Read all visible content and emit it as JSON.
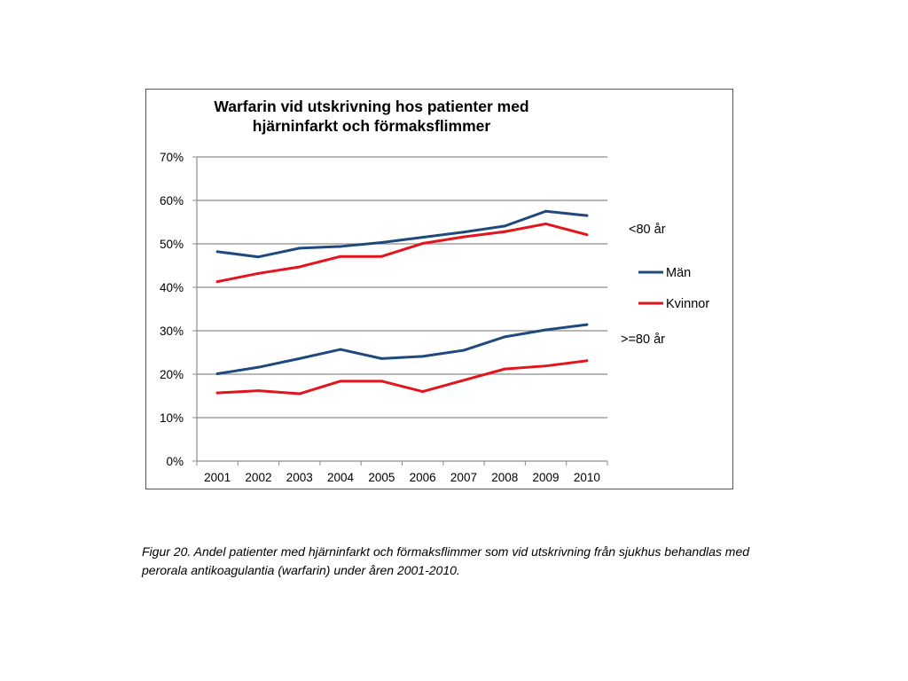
{
  "caption": {
    "label": "Figur 20.",
    "text": " Andel patienter med hjärninfarkt och förmaksflimmer som vid utskrivning från sjukhus behandlas med perorala antikoagulantia (warfarin) under åren 2001-2010."
  },
  "chart_data": {
    "type": "line",
    "title": "Warfarin vid utskrivning hos patienter med hjärninfarkt och förmaksflimmer",
    "title_lines": [
      "Warfarin vid utskrivning hos patienter med",
      "hjärninfarkt och förmaksflimmer"
    ],
    "xlabel": "",
    "ylabel": "",
    "categories": [
      "2001",
      "2002",
      "2003",
      "2004",
      "2005",
      "2006",
      "2007",
      "2008",
      "2009",
      "2010"
    ],
    "ylim": [
      0,
      0.7
    ],
    "yticks": [
      0,
      0.1,
      0.2,
      0.3,
      0.4,
      0.5,
      0.6,
      0.7
    ],
    "ytick_labels": [
      "0%",
      "10%",
      "20%",
      "30%",
      "40%",
      "50%",
      "60%",
      "70%"
    ],
    "grid": true,
    "legend_position": "right",
    "group_labels": {
      "under80": "<80 år",
      "over80": ">=80 år"
    },
    "legend": [
      {
        "name": "Män",
        "color": "#1f497d"
      },
      {
        "name": "Kvinnor",
        "color": "#e3141b"
      }
    ],
    "series": [
      {
        "group": "under80",
        "legend_index": 0,
        "color": "#1f497d",
        "values": [
          0.482,
          0.47,
          0.49,
          0.494,
          0.503,
          0.515,
          0.527,
          0.541,
          0.575,
          0.565
        ]
      },
      {
        "group": "under80",
        "legend_index": 1,
        "color": "#e3141b",
        "values": [
          0.413,
          0.432,
          0.447,
          0.471,
          0.471,
          0.501,
          0.516,
          0.528,
          0.546,
          0.521
        ]
      },
      {
        "group": "over80",
        "legend_index": 0,
        "color": "#1f497d",
        "values": [
          0.201,
          0.216,
          0.236,
          0.257,
          0.236,
          0.241,
          0.255,
          0.286,
          0.302,
          0.314
        ]
      },
      {
        "group": "over80",
        "legend_index": 1,
        "color": "#e3141b",
        "values": [
          0.157,
          0.162,
          0.155,
          0.184,
          0.184,
          0.16,
          0.186,
          0.212,
          0.219,
          0.231
        ]
      }
    ]
  }
}
